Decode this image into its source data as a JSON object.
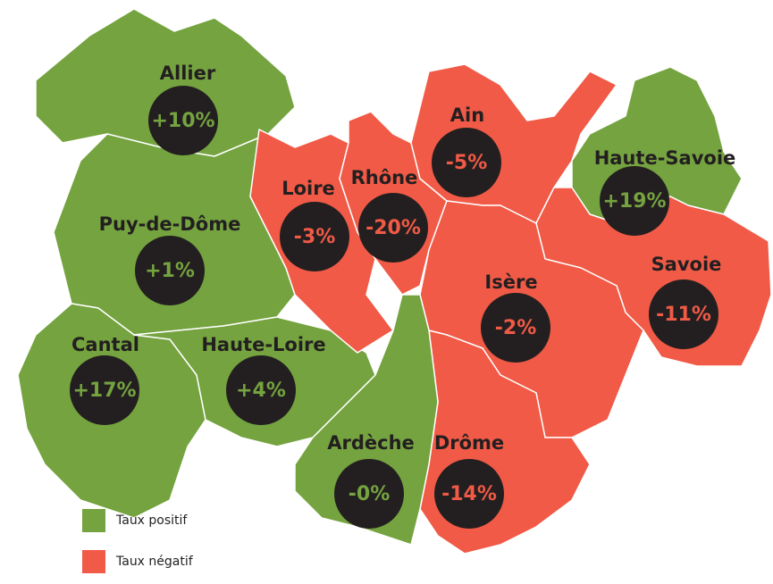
{
  "regions": [
    {
      "name": "Allier",
      "rate": "+10%",
      "color": "#74a33f"
    },
    {
      "name": "Puy-de-Dôme",
      "rate": "+1%",
      "color": "#74a33f"
    },
    {
      "name": "Cantal",
      "rate": "+17%",
      "color": "#74a33f"
    },
    {
      "name": "Haute-Loire",
      "rate": "+4%",
      "color": "#74a33f"
    },
    {
      "name": "Loire",
      "rate": "-3%",
      "color": "#f05a46"
    },
    {
      "name": "Rhône",
      "rate": "-20%",
      "color": "#f05a46"
    },
    {
      "name": "Ain",
      "rate": "-5%",
      "color": "#f05a46"
    },
    {
      "name": "Haute-Savoie",
      "rate": "+19%",
      "color": "#74a33f"
    },
    {
      "name": "Savoie",
      "rate": "-11%",
      "color": "#f05a46"
    },
    {
      "name": "Isère",
      "rate": "-2%",
      "color": "#f05a46"
    },
    {
      "name": "Drôme",
      "rate": "-14%",
      "color": "#f05a46"
    },
    {
      "name": "Ardèche",
      "rate": "-0%",
      "color": "#74a33f"
    }
  ],
  "legend": [
    {
      "label": "Taux positif",
      "color": "#74a33f"
    },
    {
      "label": "Taux négatif",
      "color": "#f05a46"
    }
  ]
}
